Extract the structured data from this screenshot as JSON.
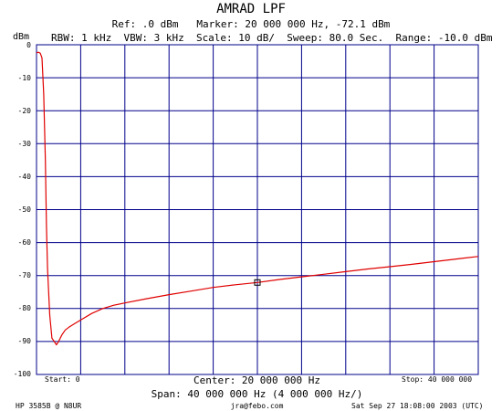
{
  "header": {
    "title": "AMRAD LPF",
    "info_line1": "Ref: .0 dBm   Marker: 20 000 000 Hz, -72.1 dBm",
    "info_line2": "RBW: 1 kHz  VBW: 3 kHz  Scale: 10 dB/  Sweep: 80.0 Sec.  Range: -10.0 dBm"
  },
  "axis": {
    "y_unit": "dBm",
    "start_label": "Start: 0",
    "stop_label": "Stop: 40 000 000",
    "center_label": "Center: 20 000 000 Hz",
    "span_label": "Span: 40 000 000 Hz (4 000 000 Hz/)"
  },
  "footer": {
    "instrument": "HP 3585B @ N8UR",
    "email": "jra@febo.com",
    "timestamp": "Sat Sep 27 18:08:00 2003 (UTC)"
  },
  "colors": {
    "trace": "#e00000",
    "grid": "#00008b"
  },
  "chart_data": {
    "type": "line",
    "title": "AMRAD LPF",
    "xlabel": "",
    "ylabel": "dBm",
    "xlim": [
      0,
      40000000
    ],
    "ylim": [
      -100,
      0
    ],
    "y_ticks": [
      "0",
      "-10",
      "-20",
      "-30",
      "-40",
      "-50",
      "-60",
      "-70",
      "-80",
      "-90",
      "-100"
    ],
    "grid": true,
    "series": [
      {
        "x": [
          0,
          100000,
          200000,
          350000,
          500000,
          650000,
          800000,
          900000,
          1000000,
          1200000,
          1400000,
          1600000,
          1800000,
          2000000,
          2300000,
          2600000,
          3000000,
          3500000,
          4000000,
          5000000,
          6000000,
          7000000,
          8000000,
          10000000,
          12000000,
          14000000,
          16000000,
          18000000,
          20000000,
          22000000,
          24000000,
          26000000,
          28000000,
          30000000,
          32000000,
          34000000,
          36000000,
          38000000,
          40000000
        ],
        "y": [
          -2.5,
          -2.3,
          -2.3,
          -2.6,
          -4.0,
          -15.0,
          -35.0,
          -55.0,
          -68.0,
          -82.0,
          -89.0,
          -90.0,
          -91.0,
          -90.0,
          -88.0,
          -86.5,
          -85.5,
          -84.5,
          -83.5,
          -81.5,
          -80.0,
          -79.0,
          -78.3,
          -77.0,
          -75.8,
          -74.7,
          -73.6,
          -72.8,
          -72.1,
          -71.2,
          -70.4,
          -69.6,
          -68.8,
          -68.0,
          -67.3,
          -66.6,
          -65.8,
          -65.0,
          -64.2
        ]
      }
    ],
    "marker": {
      "x": 20000000,
      "y": -72.1
    }
  }
}
